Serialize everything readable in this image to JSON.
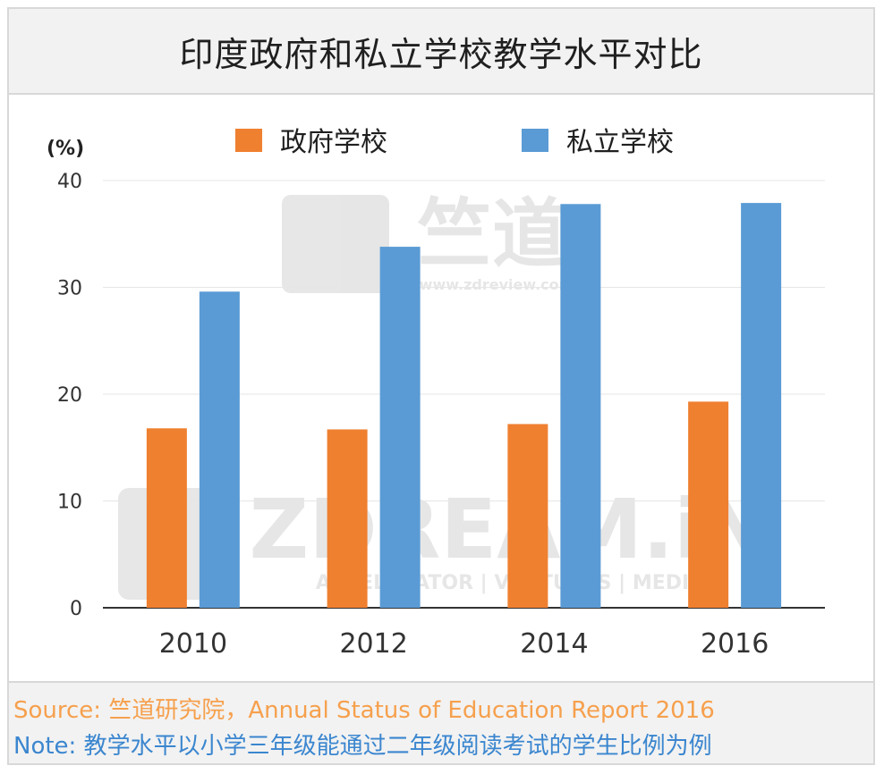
{
  "title": "印度政府和私立学校教学水平对比",
  "source": "Source: 竺道研究院，Annual Status of Education Report 2016",
  "note": "Note: 教学水平以小学三年级能通过二年级阅读考试的学生比例为例",
  "watermark": {
    "logo_top": "竺道",
    "url_top": "www.zdreview.com",
    "logo_bottom": "ZDREAM.iN",
    "tagline": "ACCELERATOR | VENTURES | MEDIA"
  },
  "colors": {
    "government": "#ef8030",
    "private": "#5a9bd5"
  },
  "chart_data": {
    "type": "bar",
    "categories": [
      "2010",
      "2012",
      "2014",
      "2016"
    ],
    "series": [
      {
        "name": "政府学校",
        "values": [
          16.8,
          16.7,
          17.2,
          19.3
        ]
      },
      {
        "name": "私立学校",
        "values": [
          29.6,
          33.8,
          37.8,
          37.9
        ]
      }
    ],
    "ylabel": "(%)",
    "ylim": [
      0,
      40
    ],
    "yticks": [
      0,
      10,
      20,
      30,
      40
    ],
    "grid": true,
    "legend": "top"
  }
}
